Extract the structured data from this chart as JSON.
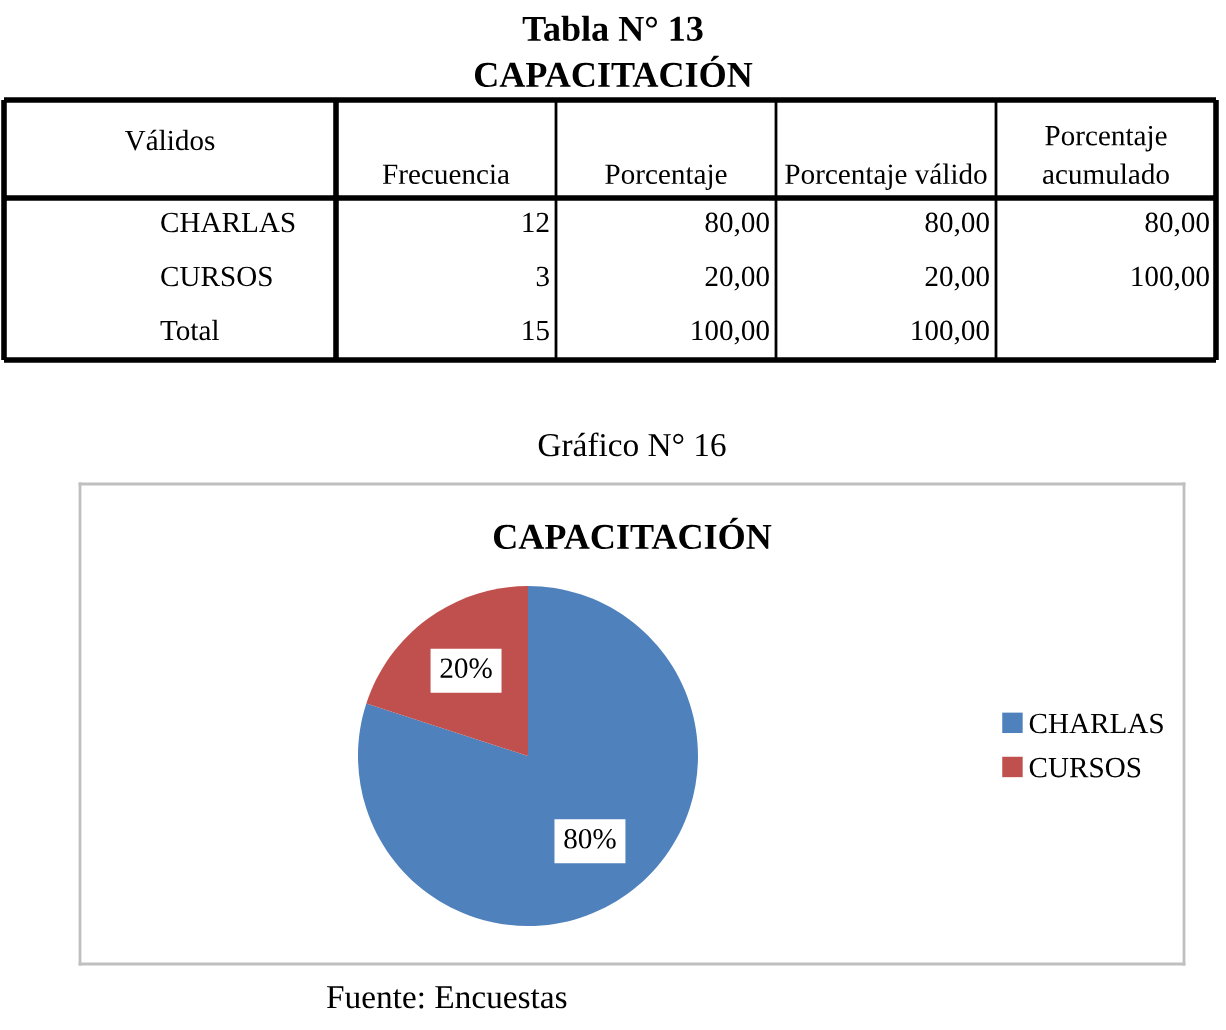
{
  "chart_data": [
    {
      "type": "other",
      "title": "Tabla N° 13",
      "subtitle": "CAPACITACIÓN",
      "annotations": [
        "Válidos"
      ],
      "categories": [
        "CHARLAS",
        "CURSOS",
        "Total"
      ],
      "series": [
        {
          "name": "Frecuencia",
          "values": [
            12,
            3,
            15
          ],
          "value_labels": [
            "12",
            "3",
            "15"
          ]
        },
        {
          "name": "Porcentaje",
          "values": [
            80,
            20,
            100
          ],
          "value_labels": [
            "80,00",
            "20,00",
            "100,00"
          ]
        },
        {
          "name": "Porcentaje válido",
          "values": [
            80,
            20,
            100
          ],
          "value_labels": [
            "80,00",
            "20,00",
            "100,00"
          ]
        },
        {
          "name": "Porcentaje acumulado",
          "values": [
            80,
            100,
            null
          ],
          "value_labels": [
            "80,00",
            "100,00",
            null
          ]
        }
      ]
    },
    {
      "type": "pie",
      "title": "CAPACITACIÓN",
      "annotations": [
        "Gráfico N° 16",
        "Fuente: Encuestas"
      ],
      "categories": [
        "CHARLAS",
        "CURSOS"
      ],
      "values": [
        80,
        20
      ],
      "colors": [
        "#4f81bd",
        "#c0504d"
      ],
      "value_labels": [
        "80%",
        "20%"
      ],
      "legend": "right"
    }
  ]
}
